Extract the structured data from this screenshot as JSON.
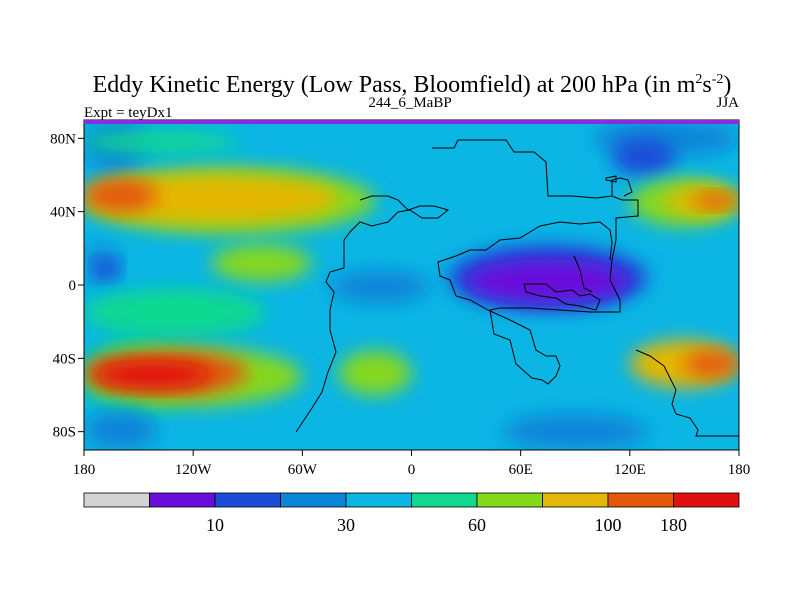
{
  "chart_data": {
    "type": "heatmap",
    "title": "Eddy Kinetic Energy (Low Pass, Bloomfield) at 200 hPa (in m",
    "title_units": {
      "sup1": "2",
      "mid": "s",
      "sup2": "-2",
      "close": ")"
    },
    "subtitle_left": "Expt = teyDx1",
    "subtitle_center": "244_6_MaBP",
    "subtitle_right": "JJA",
    "x_ticks": [
      "180",
      "120W",
      "60W",
      "0",
      "60E",
      "120E",
      "180"
    ],
    "x_tick_values": [
      -180,
      -120,
      -60,
      0,
      60,
      120,
      180
    ],
    "y_ticks": [
      "80N",
      "40N",
      "0",
      "40S",
      "80S"
    ],
    "y_tick_values": [
      80,
      40,
      0,
      -40,
      -80
    ],
    "xlim": [
      -180,
      180
    ],
    "ylim": [
      -90,
      90
    ],
    "colorbar": {
      "colors": [
        "#d3d3d3",
        "#6a0ddc",
        "#1a4bd8",
        "#0a86d8",
        "#0bb5e4",
        "#10d890",
        "#86d81a",
        "#e4b606",
        "#e4580a",
        "#e01010"
      ],
      "labels": [
        "10",
        "30",
        "60",
        "100",
        "180"
      ],
      "label_edges": [
        2,
        4,
        6,
        8,
        9
      ]
    },
    "contour_regions": [
      {
        "level": 4,
        "lon": [
          -180,
          180
        ],
        "lat": [
          -90,
          90
        ]
      },
      {
        "level": 3,
        "lon": [
          -180,
          -145
        ],
        "lat": [
          62,
          90
        ]
      },
      {
        "level": 3,
        "lon": [
          100,
          180
        ],
        "lat": [
          70,
          90
        ]
      },
      {
        "level": 5,
        "lon": [
          -180,
          -95
        ],
        "lat": [
          72,
          84
        ]
      },
      {
        "level": 2,
        "lon": [
          110,
          145
        ],
        "lat": [
          60,
          80
        ]
      },
      {
        "level": 6,
        "lon": [
          -180,
          -20
        ],
        "lat": [
          28,
          64
        ]
      },
      {
        "level": 7,
        "lon": [
          -180,
          -40
        ],
        "lat": [
          34,
          60
        ]
      },
      {
        "level": 8,
        "lon": [
          -180,
          -140
        ],
        "lat": [
          40,
          58
        ]
      },
      {
        "level": 6,
        "lon": [
          120,
          180
        ],
        "lat": [
          32,
          58
        ]
      },
      {
        "level": 7,
        "lon": [
          140,
          180
        ],
        "lat": [
          38,
          54
        ]
      },
      {
        "level": 8,
        "lon": [
          155,
          180
        ],
        "lat": [
          42,
          50
        ]
      },
      {
        "level": 3,
        "lon": [
          -180,
          -160
        ],
        "lat": [
          0,
          22
        ]
      },
      {
        "level": 2,
        "lon": [
          -175,
          -160
        ],
        "lat": [
          4,
          14
        ]
      },
      {
        "level": 6,
        "lon": [
          -110,
          -55
        ],
        "lat": [
          2,
          22
        ]
      },
      {
        "level": 3,
        "lon": [
          -45,
          10
        ],
        "lat": [
          -10,
          8
        ]
      },
      {
        "level": 2,
        "lon": [
          20,
          130
        ],
        "lat": [
          -14,
          22
        ]
      },
      {
        "level": 1,
        "lon": [
          30,
          120
        ],
        "lat": [
          -10,
          14
        ]
      },
      {
        "level": 5,
        "lon": [
          -180,
          -80
        ],
        "lat": [
          -28,
          -2
        ]
      },
      {
        "level": 5,
        "lon": [
          -180,
          -120
        ],
        "lat": [
          -70,
          -28
        ]
      },
      {
        "level": 6,
        "lon": [
          -180,
          -60
        ],
        "lat": [
          -66,
          -34
        ]
      },
      {
        "level": 8,
        "lon": [
          -180,
          -90
        ],
        "lat": [
          -60,
          -36
        ]
      },
      {
        "level": 9,
        "lon": [
          -175,
          -110
        ],
        "lat": [
          -56,
          -42
        ]
      },
      {
        "level": 6,
        "lon": [
          -40,
          0
        ],
        "lat": [
          -60,
          -36
        ]
      },
      {
        "level": 7,
        "lon": [
          120,
          180
        ],
        "lat": [
          -56,
          -30
        ]
      },
      {
        "level": 8,
        "lon": [
          150,
          180
        ],
        "lat": [
          -50,
          -36
        ]
      },
      {
        "level": 3,
        "lon": [
          50,
          130
        ],
        "lat": [
          -90,
          -70
        ]
      },
      {
        "level": 3,
        "lon": [
          -180,
          -140
        ],
        "lat": [
          -90,
          -68
        ]
      }
    ]
  }
}
